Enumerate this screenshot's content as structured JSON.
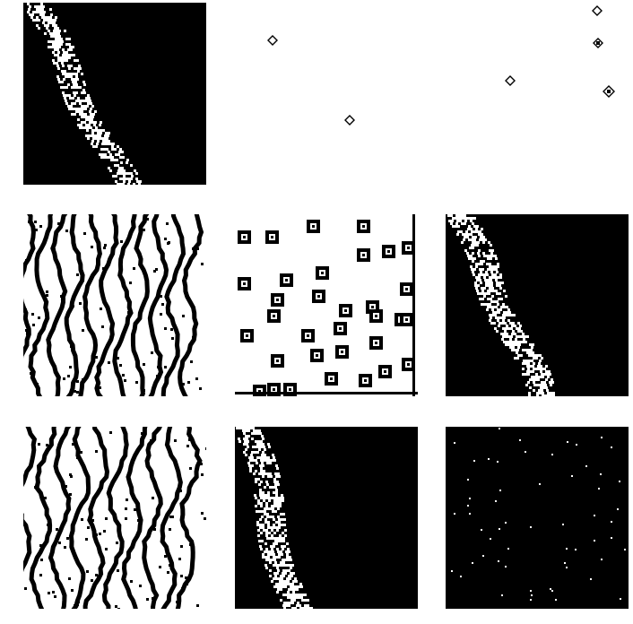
{
  "grid": {
    "rows": 3,
    "columns": 3,
    "tiles": [
      {
        "row": 1,
        "col": 1,
        "pattern": "diagonal-noisy-band",
        "background": "#000000",
        "foreground": "#ffffff"
      },
      {
        "row": 1,
        "col": 2,
        "pattern": "sparse-diamonds",
        "background": "#ffffff",
        "foreground": "#000000"
      },
      {
        "row": 1,
        "col": 3,
        "pattern": "sparse-diamonds",
        "background": "#ffffff",
        "foreground": "#000000"
      },
      {
        "row": 2,
        "col": 1,
        "pattern": "wavy-vertical-stripes",
        "background": "#ffffff",
        "foreground": "#000000"
      },
      {
        "row": 2,
        "col": 2,
        "pattern": "scattered-square-glyphs",
        "background": "#ffffff",
        "foreground": "#000000"
      },
      {
        "row": 2,
        "col": 3,
        "pattern": "diagonal-noisy-band",
        "background": "#000000",
        "foreground": "#ffffff"
      },
      {
        "row": 3,
        "col": 1,
        "pattern": "wavy-vertical-stripes",
        "background": "#ffffff",
        "foreground": "#000000"
      },
      {
        "row": 3,
        "col": 2,
        "pattern": "vertical-noisy-band",
        "background": "#000000",
        "foreground": "#ffffff"
      },
      {
        "row": 3,
        "col": 3,
        "pattern": "starfield-dots",
        "background": "#000000",
        "foreground": "#ffffff"
      }
    ]
  }
}
